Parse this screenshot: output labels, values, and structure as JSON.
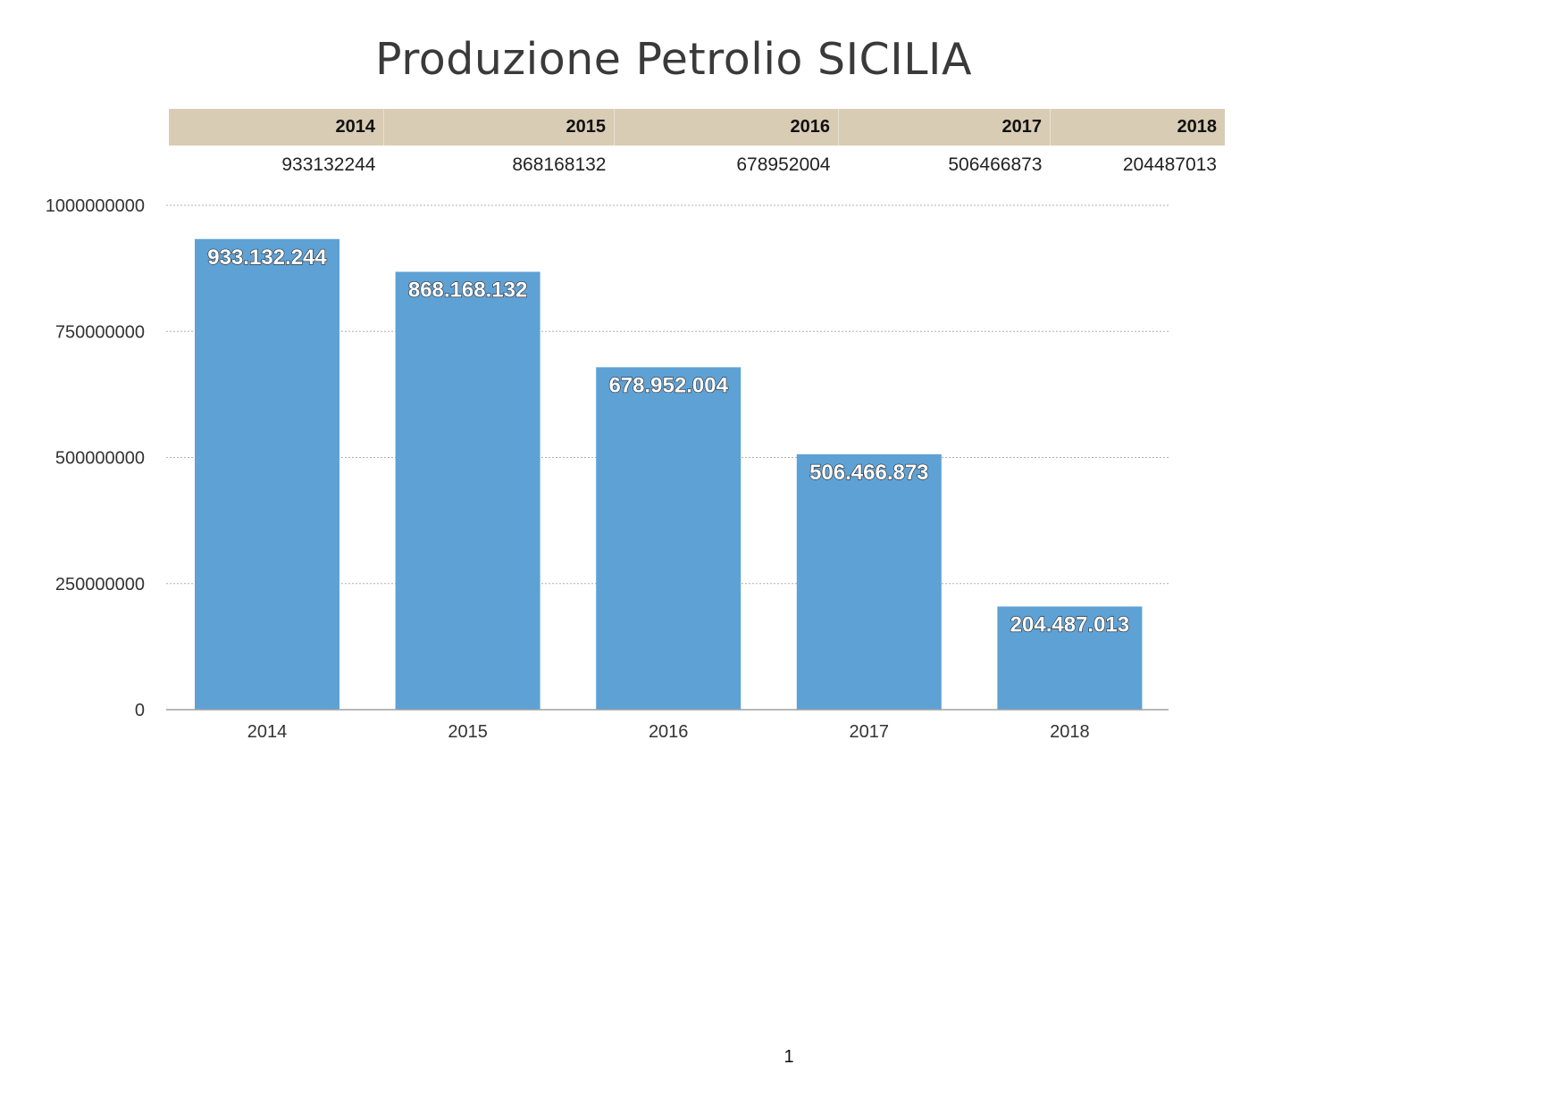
{
  "chart_data": {
    "type": "bar",
    "title": "Produzione Petrolio SICILIA",
    "categories": [
      "2014",
      "2015",
      "2016",
      "2017",
      "2018"
    ],
    "values": [
      933132244,
      868168132,
      678952004,
      506466873,
      204487013
    ],
    "table_values": [
      "933132244",
      "868168132",
      "678952004",
      "506466873",
      "204487013"
    ],
    "data_labels": [
      "933.132.244",
      "868.168.132",
      "678.952.004",
      "506.466.873",
      "204.487.013"
    ],
    "yticks": [
      0,
      250000000,
      500000000,
      750000000,
      1000000000
    ],
    "ytick_labels": [
      "0",
      "250000000",
      "500000000",
      "750000000",
      "1000000000"
    ],
    "ylim": [
      0,
      1000000000
    ],
    "xlabel": "",
    "ylabel": "",
    "grid": true,
    "bar_color": "#5ea1d5"
  },
  "page": {
    "number": "1"
  }
}
